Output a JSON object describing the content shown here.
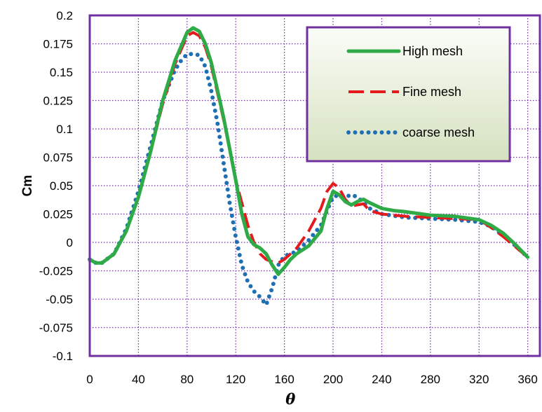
{
  "chart_data": {
    "type": "line",
    "xlabel": "θ",
    "ylabel": "Cm",
    "xlim": [
      0,
      370
    ],
    "ylim": [
      -0.1,
      0.2
    ],
    "x_ticks": [
      0,
      40,
      80,
      120,
      160,
      200,
      240,
      280,
      320,
      360
    ],
    "y_ticks": [
      -0.1,
      -0.075,
      -0.05,
      -0.025,
      0,
      0.025,
      0.05,
      0.075,
      0.1,
      0.125,
      0.15,
      0.175,
      0.2
    ],
    "x_tick_labels": [
      "0",
      "40",
      "80",
      "120",
      "160",
      "200",
      "240",
      "280",
      "320",
      "360"
    ],
    "y_tick_labels": [
      "-0.1",
      "-0.075",
      "-0.05",
      "-0.025",
      "0",
      "0.025",
      "0.05",
      "0.075",
      "0.1",
      "0.125",
      "0.15",
      "0.175",
      "0.2"
    ],
    "grid": true,
    "legend_position": "top-right",
    "colors": {
      "high": "#2eaa46",
      "fine": "#e41a1c",
      "coarse": "#1f6fb5",
      "frame": "#7030a0",
      "grid": "#7030a0"
    },
    "series": [
      {
        "name": "High mesh",
        "style": "solid",
        "x": [
          0,
          5,
          10,
          20,
          30,
          40,
          50,
          60,
          70,
          80,
          85,
          90,
          95,
          100,
          110,
          120,
          125,
          130,
          135,
          140,
          145,
          150,
          155,
          160,
          165,
          170,
          180,
          190,
          195,
          200,
          205,
          210,
          215,
          220,
          225,
          230,
          240,
          250,
          260,
          280,
          300,
          320,
          330,
          340,
          350,
          360
        ],
        "y": [
          -0.015,
          -0.018,
          -0.018,
          -0.01,
          0.01,
          0.04,
          0.08,
          0.125,
          0.16,
          0.185,
          0.189,
          0.186,
          0.175,
          0.158,
          0.11,
          0.055,
          0.025,
          0.005,
          -0.002,
          -0.005,
          -0.01,
          -0.02,
          -0.028,
          -0.022,
          -0.015,
          -0.01,
          -0.003,
          0.01,
          0.03,
          0.045,
          0.042,
          0.036,
          0.033,
          0.036,
          0.038,
          0.035,
          0.03,
          0.028,
          0.027,
          0.024,
          0.023,
          0.02,
          0.015,
          0.008,
          -0.002,
          -0.013
        ]
      },
      {
        "name": "Fine mesh",
        "style": "dashed",
        "x": [
          0,
          5,
          10,
          20,
          30,
          40,
          50,
          60,
          70,
          80,
          85,
          90,
          95,
          100,
          110,
          120,
          130,
          135,
          140,
          145,
          150,
          155,
          160,
          170,
          180,
          190,
          195,
          200,
          205,
          210,
          215,
          220,
          225,
          230,
          240,
          260,
          280,
          300,
          320,
          330,
          340,
          350,
          360
        ],
        "y": [
          -0.015,
          -0.018,
          -0.018,
          -0.01,
          0.01,
          0.04,
          0.08,
          0.122,
          0.157,
          0.182,
          0.185,
          0.182,
          0.172,
          0.155,
          0.108,
          0.055,
          0.015,
          0.0,
          -0.01,
          -0.015,
          -0.017,
          -0.018,
          -0.015,
          -0.005,
          0.01,
          0.03,
          0.045,
          0.052,
          0.048,
          0.038,
          0.032,
          0.033,
          0.034,
          0.028,
          0.025,
          0.023,
          0.022,
          0.021,
          0.02,
          0.013,
          0.005,
          -0.004,
          -0.013
        ]
      },
      {
        "name": "coarse mesh",
        "style": "dotted",
        "x": [
          0,
          5,
          10,
          20,
          30,
          40,
          50,
          60,
          70,
          75,
          80,
          85,
          90,
          95,
          100,
          105,
          110,
          115,
          120,
          125,
          130,
          135,
          140,
          145,
          150,
          155,
          160,
          170,
          180,
          190,
          195,
          200,
          205,
          210,
          215,
          220,
          225,
          230,
          240,
          260,
          280,
          300,
          320,
          330,
          340,
          350,
          360
        ],
        "y": [
          -0.015,
          -0.018,
          -0.018,
          -0.01,
          0.012,
          0.045,
          0.085,
          0.125,
          0.152,
          0.16,
          0.166,
          0.166,
          0.165,
          0.155,
          0.133,
          0.105,
          0.07,
          0.035,
          0.005,
          -0.02,
          -0.035,
          -0.043,
          -0.048,
          -0.055,
          -0.04,
          -0.02,
          -0.012,
          -0.008,
          0.002,
          0.015,
          0.028,
          0.04,
          0.042,
          0.04,
          0.042,
          0.04,
          0.035,
          0.03,
          0.025,
          0.022,
          0.021,
          0.02,
          0.018,
          0.014,
          0.006,
          -0.003,
          -0.013
        ]
      }
    ]
  }
}
